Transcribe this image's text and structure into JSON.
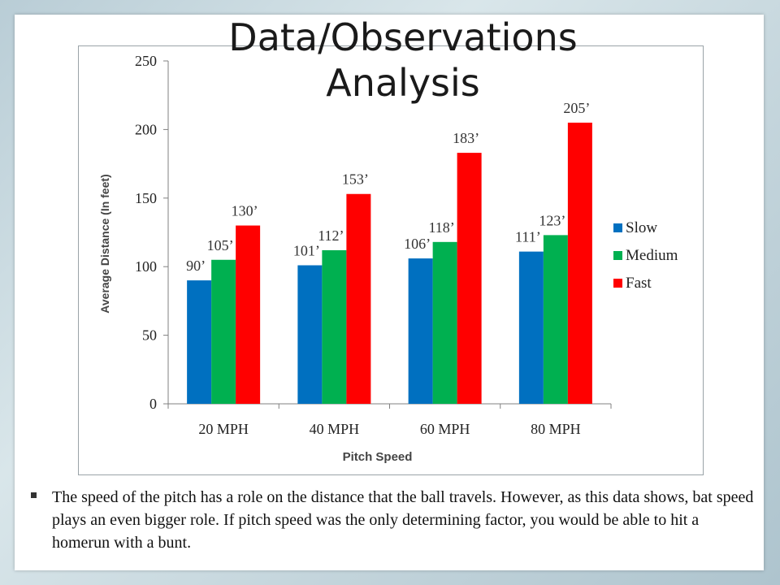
{
  "slide": {
    "title": "Data/Observations Analysis",
    "body_text": "The speed of the pitch has a role on the distance that the ball travels.  However, as this data shows, bat speed plays an even bigger role.  If pitch speed was the only determining factor, you would be able to hit a homerun with a bunt."
  },
  "chart_data": {
    "type": "bar",
    "categories": [
      "20 MPH",
      "40 MPH",
      "60 MPH",
      "80 MPH"
    ],
    "series": [
      {
        "name": "Slow",
        "color": "#0070C0",
        "values": [
          90,
          101,
          106,
          111
        ],
        "labels": [
          "90’",
          "101’",
          "106’",
          "111’"
        ]
      },
      {
        "name": "Medium",
        "color": "#00B050",
        "values": [
          105,
          112,
          118,
          123
        ],
        "labels": [
          "105’",
          "112’",
          "118’",
          "123’"
        ]
      },
      {
        "name": "Fast",
        "color": "#FF0000",
        "values": [
          130,
          153,
          183,
          205
        ],
        "labels": [
          "130’",
          "153’",
          "183’",
          "205’"
        ]
      }
    ],
    "xlabel": "Pitch Speed",
    "ylabel": "Average Distance (In feet)",
    "ylim": [
      0,
      250
    ],
    "yticks": [
      0,
      50,
      100,
      150,
      200,
      250
    ],
    "grid": false,
    "legend_position": "right"
  }
}
